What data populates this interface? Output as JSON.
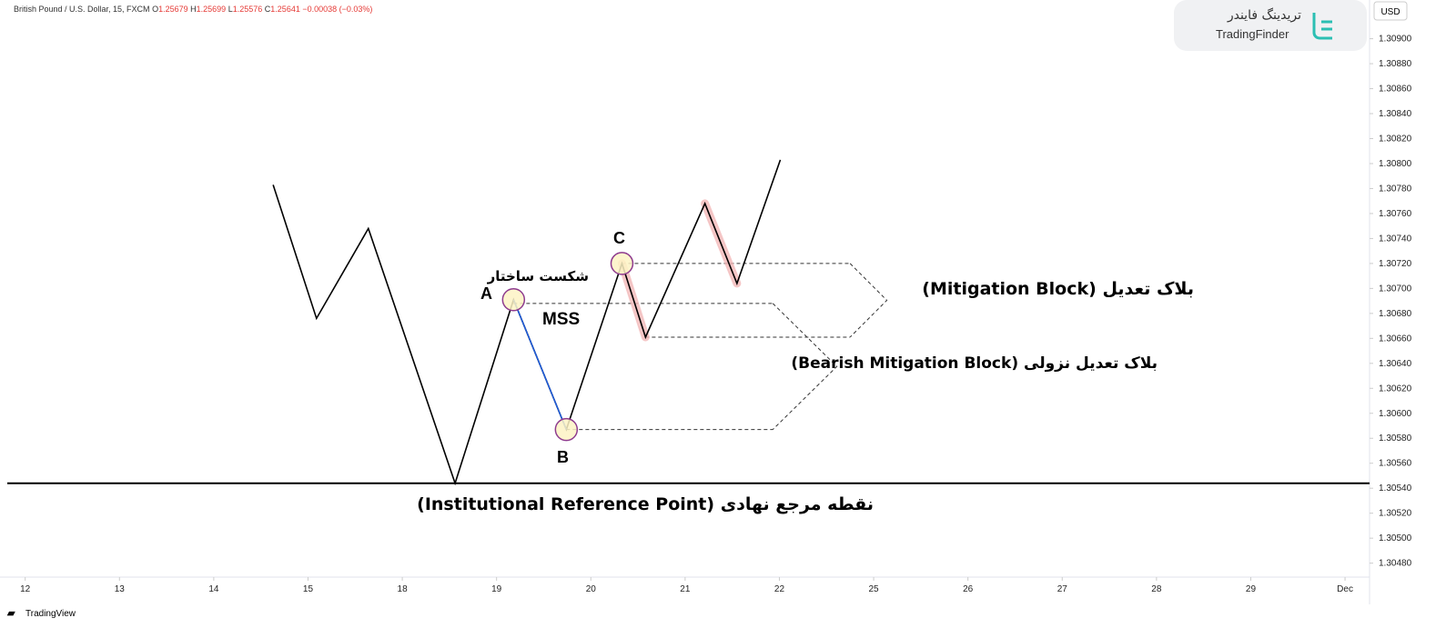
{
  "header": {
    "symbol": "British Pound / U.S. Dollar, 15, FXCM",
    "o_label": "O",
    "open": 1.25679,
    "h_label": "H",
    "high": 1.25699,
    "l_label": "L",
    "low": 1.25576,
    "c_label": "C",
    "close": 1.25641,
    "change": "−0.00038 (−0.03%)"
  },
  "logo": {
    "title_fa": "تریدینگ فایندر",
    "title_en": "TradingFinder"
  },
  "currency": "USD",
  "footer": "TradingView",
  "chart_data": {
    "type": "line",
    "xlim": [
      -0.19,
      14.26
    ],
    "ylim": [
      1.30471,
      1.30931
    ],
    "xticks": [
      {
        "value": 0,
        "label": "12"
      },
      {
        "value": 1,
        "label": "13"
      },
      {
        "value": 2,
        "label": "14"
      },
      {
        "value": 3,
        "label": "15"
      },
      {
        "value": 4,
        "label": "18"
      },
      {
        "value": 5,
        "label": "19"
      },
      {
        "value": 6,
        "label": "20"
      },
      {
        "value": 7,
        "label": "21"
      },
      {
        "value": 8,
        "label": "22"
      },
      {
        "value": 9,
        "label": "25"
      },
      {
        "value": 10,
        "label": "26"
      },
      {
        "value": 11,
        "label": "27"
      },
      {
        "value": 12,
        "label": "28"
      },
      {
        "value": 13,
        "label": "29"
      },
      {
        "value": 14,
        "label": "Dec"
      }
    ],
    "yticks": [
      {
        "value": 1.309,
        "label": "1.30900"
      },
      {
        "value": 1.3088,
        "label": "1.30880"
      },
      {
        "value": 1.3086,
        "label": "1.30860"
      },
      {
        "value": 1.3084,
        "label": "1.30840"
      },
      {
        "value": 1.3082,
        "label": "1.30820"
      },
      {
        "value": 1.308,
        "label": "1.30800"
      },
      {
        "value": 1.3078,
        "label": "1.30780"
      },
      {
        "value": 1.3076,
        "label": "1.30760"
      },
      {
        "value": 1.3074,
        "label": "1.30740"
      },
      {
        "value": 1.3072,
        "label": "1.30720"
      },
      {
        "value": 1.307,
        "label": "1.30700"
      },
      {
        "value": 1.3068,
        "label": "1.30680"
      },
      {
        "value": 1.3066,
        "label": "1.30660"
      },
      {
        "value": 1.3064,
        "label": "1.30640"
      },
      {
        "value": 1.3062,
        "label": "1.30620"
      },
      {
        "value": 1.306,
        "label": "1.30600"
      },
      {
        "value": 1.3058,
        "label": "1.30580"
      },
      {
        "value": 1.3056,
        "label": "1.30560"
      },
      {
        "value": 1.3054,
        "label": "1.30540"
      },
      {
        "value": 1.3052,
        "label": "1.30520"
      },
      {
        "value": 1.305,
        "label": "1.30500"
      },
      {
        "value": 1.3048,
        "label": "1.30480"
      }
    ],
    "series": [
      {
        "color": "#000000",
        "x": [
          2.63,
          3.09,
          3.64,
          4.56,
          5.18,
          5.74,
          6.33,
          6.58,
          7.21,
          7.55,
          8.01
        ],
        "values": [
          1.30783,
          1.30676,
          1.30748,
          1.30544,
          1.30691,
          1.30587,
          1.3072,
          1.30661,
          1.30768,
          1.30704,
          1.30803
        ]
      },
      {
        "color": "#1e5bd8",
        "x": [
          5.18,
          5.74
        ],
        "values": [
          1.30691,
          1.30587
        ]
      }
    ],
    "highlights": [
      {
        "color": "#f2b8b8",
        "x": [
          6.33,
          6.58
        ],
        "values": [
          1.3072,
          1.30661
        ]
      },
      {
        "color": "#f2b8b8",
        "x": [
          7.21,
          7.55
        ],
        "values": [
          1.30768,
          1.30704
        ]
      }
    ],
    "points": [
      {
        "label": "A",
        "x": 5.18,
        "y": 1.30691
      },
      {
        "label": "B",
        "x": 5.74,
        "y": 1.30587
      },
      {
        "label": "C",
        "x": 6.33,
        "y": 1.3072
      }
    ],
    "reference": {
      "value": 1.30544,
      "label": "نقطه مرجع نهادی (Institutional Reference Point)"
    },
    "blocks": [
      {
        "top": 1.3072,
        "bottom": 1.30661,
        "start_top": 6.33,
        "start_bottom": 6.58,
        "end": 8.75,
        "tip": 9.14,
        "label": "بلاک تعدیل  (Mitigation Block)"
      },
      {
        "top": 1.30688,
        "bottom": 1.30587,
        "start_top": 5.18,
        "start_bottom": 5.74,
        "end": 7.93,
        "tip": 8.61,
        "label": "بلاک تعدیل نزولی (Bearish Mitigation Block)"
      }
    ],
    "annotations": {
      "mss": "MSS",
      "break_fa": "شکست ساختار"
    }
  }
}
